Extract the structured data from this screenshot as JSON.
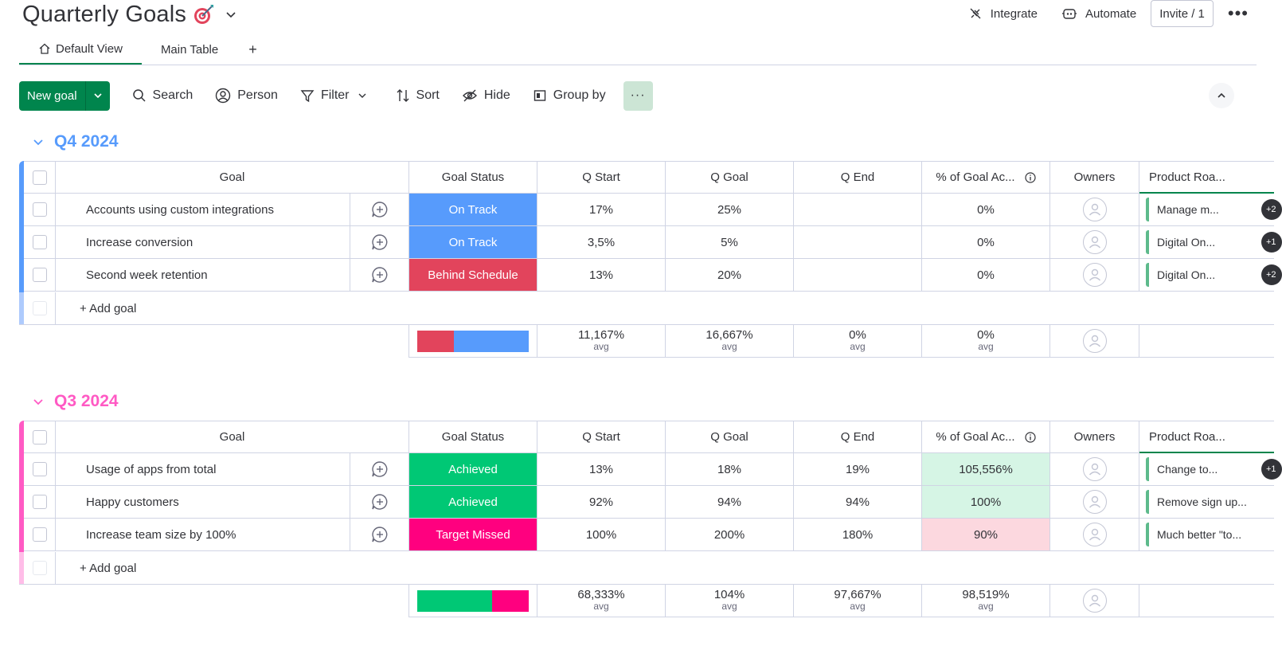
{
  "header": {
    "title": "Quarterly Goals",
    "integrate": "Integrate",
    "automate": "Automate",
    "invite": "Invite / 1",
    "more": "•••"
  },
  "tabs": [
    {
      "label": "Default View",
      "active": true
    },
    {
      "label": "Main Table",
      "active": false
    },
    {
      "label": "+"
    }
  ],
  "toolbar": {
    "new_goal": "New goal",
    "search": "Search",
    "person": "Person",
    "filter": "Filter",
    "sort": "Sort",
    "hide": "Hide",
    "group_by": "Group by",
    "more": "···"
  },
  "columns": {
    "goal": "Goal",
    "status": "Goal Status",
    "q_start": "Q Start",
    "q_goal": "Q Goal",
    "q_end": "Q End",
    "pct": "% of Goal Ac...",
    "owners": "Owners",
    "roadmap": "Product Roa..."
  },
  "colors": {
    "on_track": "#579bfc",
    "behind": "#e2445c",
    "achieved": "#00c875",
    "missed": "#ff007f",
    "q4": "#579bfc",
    "q3": "#ff5ac4"
  },
  "groups": [
    {
      "name": "Q4 2024",
      "add_label": "+ Add goal",
      "rows": [
        {
          "goal": "Accounts using custom integrations",
          "status": "On Track",
          "q_start": "17%",
          "q_goal": "25%",
          "q_end": "",
          "pct": "0%",
          "roadmap": "Manage m...",
          "badge": "+2"
        },
        {
          "goal": "Increase conversion",
          "status": "On Track",
          "q_start": "3,5%",
          "q_goal": "5%",
          "q_end": "",
          "pct": "0%",
          "roadmap": "Digital On...",
          "badge": "+1"
        },
        {
          "goal": "Second week retention",
          "status": "Behind Schedule",
          "q_start": "13%",
          "q_goal": "20%",
          "q_end": "",
          "pct": "0%",
          "roadmap": "Digital On...",
          "badge": "+2"
        }
      ],
      "summary": {
        "q_start": "11,167%",
        "q_goal": "16,667%",
        "q_end": "0%",
        "pct": "0%",
        "avg": "avg",
        "bar": [
          0.33,
          0.67
        ]
      }
    },
    {
      "name": "Q3 2024",
      "add_label": "+ Add goal",
      "rows": [
        {
          "goal": "Usage of apps from total",
          "status": "Achieved",
          "q_start": "13%",
          "q_goal": "18%",
          "q_end": "19%",
          "pct": "105,556%",
          "roadmap": "Change to...",
          "badge": "+1"
        },
        {
          "goal": "Happy customers",
          "status": "Achieved",
          "q_start": "92%",
          "q_goal": "94%",
          "q_end": "94%",
          "pct": "100%",
          "roadmap": "Remove sign up..."
        },
        {
          "goal": "Increase team size by 100%",
          "status": "Target Missed",
          "q_start": "100%",
          "q_goal": "200%",
          "q_end": "180%",
          "pct": "90%",
          "roadmap": "Much better \"to..."
        }
      ],
      "summary": {
        "q_start": "68,333%",
        "q_goal": "104%",
        "q_end": "97,667%",
        "pct": "98,519%",
        "avg": "avg",
        "bar": [
          0.67,
          0.33
        ]
      }
    }
  ]
}
